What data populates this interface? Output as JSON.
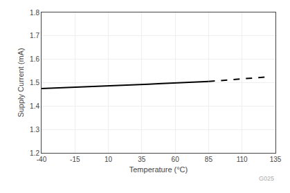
{
  "chart_data": {
    "type": "line",
    "xlabel": "Temperature (°C)",
    "ylabel": "Supply Current (mA)",
    "xlim": [
      -40,
      135
    ],
    "ylim": [
      1.2,
      1.8
    ],
    "xticks": [
      -40,
      -15,
      10,
      35,
      60,
      85,
      110,
      135
    ],
    "yticks": [
      1.2,
      1.3,
      1.4,
      1.5,
      1.6,
      1.7,
      1.8
    ],
    "grid": true,
    "annotation": "G025",
    "series": [
      {
        "color": "#000000",
        "line_style": "solid",
        "x": [
          -40,
          -30,
          -20,
          -10,
          0,
          10,
          20,
          30,
          40,
          50,
          60,
          70,
          80,
          85
        ],
        "values": [
          1.475,
          1.477,
          1.479,
          1.481,
          1.484,
          1.487,
          1.489,
          1.491,
          1.493,
          1.496,
          1.499,
          1.501,
          1.503,
          1.505
        ]
      },
      {
        "color": "#000000",
        "line_style": "dashed",
        "x": [
          85,
          90,
          95,
          100,
          105,
          110,
          115,
          120,
          125,
          130
        ],
        "values": [
          1.505,
          1.507,
          1.509,
          1.512,
          1.514,
          1.517,
          1.519,
          1.521,
          1.523,
          1.525
        ]
      }
    ]
  }
}
